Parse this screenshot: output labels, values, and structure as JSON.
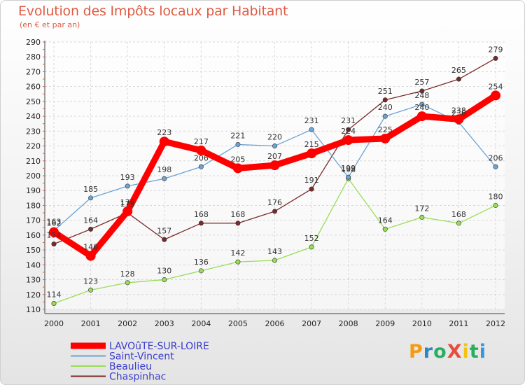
{
  "header": {
    "title": "Evolution des Impôts locaux par Habitant",
    "subtitle": "(en € et par an)"
  },
  "logo": {
    "text": "ProXiti",
    "colors": [
      "#f39c12",
      "#2e86c1",
      "#27ae60",
      "#e74c3c",
      "#f1c40f",
      "#27ae60",
      "#3498db"
    ]
  },
  "chart_data": {
    "type": "line",
    "title": "Evolution des Impôts locaux par Habitant",
    "ylabel": "(en € et par an)",
    "xlabel": "",
    "ylim": [
      110,
      290
    ],
    "ytick_step": 10,
    "grid": true,
    "legend_position": "bottom-left",
    "categories": [
      "2000",
      "2001",
      "2002",
      "2003",
      "2004",
      "2005",
      "2006",
      "2007",
      "2008",
      "2009",
      "2010",
      "2011",
      "2012"
    ],
    "series": [
      {
        "name": "LAVOûTE-SUR-LOIRE",
        "color": "#ff0000",
        "width": "thick",
        "values": [
          162,
          146,
          176,
          223,
          217,
          205,
          207,
          215,
          224,
          225,
          240,
          238,
          254
        ]
      },
      {
        "name": "Saint-Vincent",
        "color": "#6aa3d5",
        "width": "thin",
        "values": [
          163,
          185,
          193,
          198,
          206,
          221,
          220,
          231,
          199,
          240,
          248,
          236,
          206
        ]
      },
      {
        "name": "Beaulieu",
        "color": "#99dd55",
        "width": "thin",
        "values": [
          114,
          123,
          128,
          130,
          136,
          142,
          143,
          152,
          198,
          164,
          172,
          168,
          180
        ]
      },
      {
        "name": "Chaspinhac",
        "color": "#7a2a2a",
        "width": "thin",
        "values": [
          154,
          164,
          175,
          157,
          168,
          168,
          176,
          191,
          231,
          251,
          257,
          265,
          279
        ]
      }
    ]
  }
}
